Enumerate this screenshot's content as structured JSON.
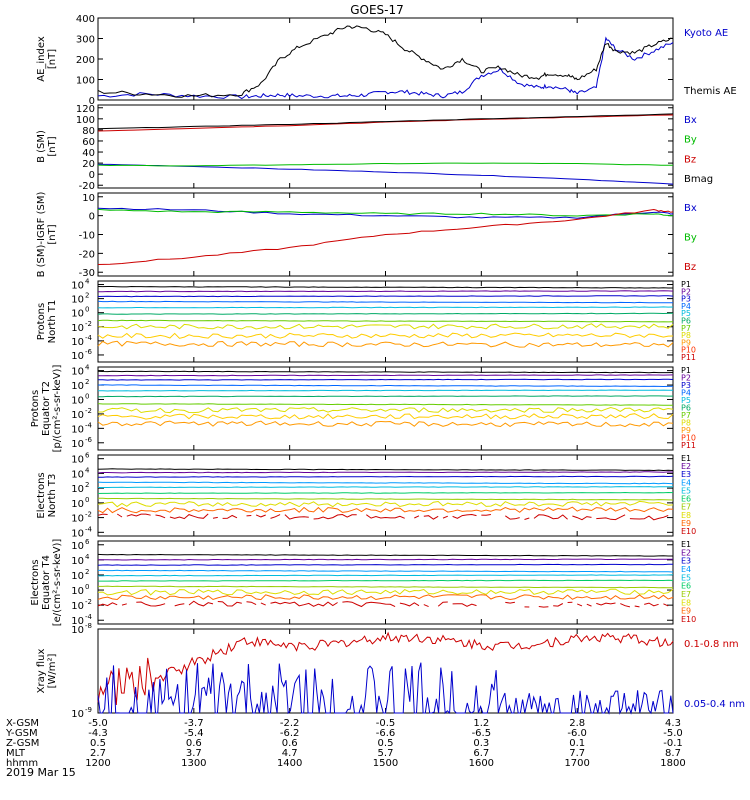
{
  "title": "GOES-17",
  "x_axis": {
    "ticks": [
      "1200",
      "1300",
      "1400",
      "1500",
      "1600",
      "1700",
      "1800"
    ],
    "date_label": "2019 Mar 15",
    "rows": [
      {
        "label": "X-GSM",
        "values": [
          "-5.0",
          "-3.7",
          "-2.2",
          "-0.5",
          "1.2",
          "2.8",
          "4.3"
        ]
      },
      {
        "label": "Y-GSM",
        "values": [
          "-4.3",
          "-5.4",
          "-6.2",
          "-6.6",
          "-6.5",
          "-6.0",
          "-5.0"
        ]
      },
      {
        "label": "Z-GSM",
        "values": [
          "0.5",
          "0.6",
          "0.6",
          "0.5",
          "0.3",
          "0.1",
          "-0.1"
        ]
      },
      {
        "label": "MLT",
        "values": [
          "2.7",
          "3.7",
          "4.7",
          "5.7",
          "6.7",
          "7.7",
          "8.7"
        ]
      },
      {
        "label": "hhmm",
        "values": [
          "1200",
          "1300",
          "1400",
          "1500",
          "1600",
          "1700",
          "1800"
        ]
      }
    ]
  },
  "chart_data": [
    {
      "type": "line",
      "ylabel": [
        "AE_index",
        "[nT]"
      ],
      "ylim": [
        0,
        400
      ],
      "yticks": [
        "0",
        "100",
        "200",
        "300",
        "400"
      ],
      "legend": [
        {
          "name": "Kyoto AE",
          "color": "#0000cc"
        },
        {
          "name": "Themis AE",
          "color": "#000000"
        }
      ],
      "x": [
        12.0,
        12.5,
        13.0,
        13.5,
        13.7,
        13.9,
        14.1,
        14.4,
        14.6,
        14.8,
        15.0,
        15.2,
        15.4,
        15.6,
        15.8,
        16.0,
        16.2,
        16.4,
        16.6,
        16.7,
        16.9,
        17.0,
        17.2,
        17.3,
        17.4,
        17.6,
        17.8,
        18.0
      ],
      "series": [
        {
          "name": "Kyoto AE",
          "color": "#0000cc",
          "values": [
            20,
            30,
            20,
            15,
            20,
            25,
            20,
            20,
            20,
            25,
            40,
            40,
            30,
            20,
            40,
            120,
            150,
            80,
            60,
            70,
            50,
            30,
            60,
            300,
            250,
            200,
            240,
            280
          ]
        },
        {
          "name": "Themis AE",
          "color": "#000000",
          "values": [
            40,
            30,
            20,
            30,
            80,
            200,
            260,
            320,
            360,
            350,
            320,
            250,
            200,
            150,
            200,
            140,
            160,
            120,
            110,
            130,
            120,
            100,
            150,
            280,
            240,
            230,
            270,
            300
          ]
        }
      ]
    },
    {
      "type": "line",
      "ylabel": [
        "B (SM)",
        "[nT]"
      ],
      "ylim": [
        -25,
        125
      ],
      "yticks": [
        "-20",
        "0",
        "20",
        "40",
        "60",
        "80",
        "100",
        "120"
      ],
      "legend": [
        {
          "name": "Bx",
          "color": "#0000cc"
        },
        {
          "name": "By",
          "color": "#00bb00"
        },
        {
          "name": "Bz",
          "color": "#cc0000"
        },
        {
          "name": "Bmag",
          "color": "#000000"
        }
      ],
      "x": [
        12,
        13,
        14,
        15,
        16,
        17,
        18
      ],
      "series": [
        {
          "name": "Bx",
          "color": "#0000cc",
          "values": [
            18,
            14,
            9,
            4,
            -2,
            -9,
            -18
          ]
        },
        {
          "name": "By",
          "color": "#00bb00",
          "values": [
            16,
            15,
            17,
            19,
            20,
            19,
            16
          ]
        },
        {
          "name": "Bz",
          "color": "#cc0000",
          "values": [
            78,
            83,
            88,
            94,
            99,
            103,
            107
          ]
        },
        {
          "name": "Bmag",
          "color": "#000000",
          "values": [
            82,
            86,
            90,
            95,
            100,
            104,
            109
          ]
        }
      ]
    },
    {
      "type": "line",
      "ylabel": [
        "B (SM)-IGRF (SM)",
        "[nT]"
      ],
      "ylim": [
        -32,
        12
      ],
      "yticks": [
        "-30",
        "-20",
        "-10",
        "0",
        "10"
      ],
      "legend": [
        {
          "name": "Bx",
          "color": "#0000cc"
        },
        {
          "name": "By",
          "color": "#00bb00"
        },
        {
          "name": "Bz",
          "color": "#cc0000"
        }
      ],
      "x": [
        12,
        13,
        14,
        15,
        16,
        17,
        17.8,
        18
      ],
      "series": [
        {
          "name": "Bx",
          "color": "#0000cc",
          "values": [
            4,
            3,
            1,
            0,
            -1,
            -1,
            2,
            1
          ]
        },
        {
          "name": "By",
          "color": "#00bb00",
          "values": [
            3,
            2,
            2,
            1,
            1,
            0,
            1,
            0
          ]
        },
        {
          "name": "Bz",
          "color": "#cc0000",
          "values": [
            -26,
            -22,
            -17,
            -10,
            -6,
            -2,
            3,
            2
          ]
        }
      ]
    },
    {
      "type": "line",
      "log": true,
      "ylabel": [
        "Protons",
        "North T1"
      ],
      "ylim_exp": [
        -7,
        4.5
      ],
      "ytick_exps": [
        4,
        2,
        0,
        -2,
        -4,
        -6
      ],
      "legend": [
        {
          "name": "P1",
          "color": "#000000"
        },
        {
          "name": "P2",
          "color": "#660099"
        },
        {
          "name": "P3",
          "color": "#0000cc"
        },
        {
          "name": "P4",
          "color": "#0066ff"
        },
        {
          "name": "P5",
          "color": "#00bbdd"
        },
        {
          "name": "P6",
          "color": "#00aa66"
        },
        {
          "name": "P7",
          "color": "#66cc00"
        },
        {
          "name": "P8",
          "color": "#dddd00"
        },
        {
          "name": "P9",
          "color": "#ff9900"
        },
        {
          "name": "P10",
          "color": "#ff3300"
        },
        {
          "name": "P11",
          "color": "#cc0000"
        }
      ],
      "series_levels": [
        3.7,
        3.0,
        2.3,
        1.6,
        0.7,
        -0.2,
        -1.1,
        -2.0,
        -3.3,
        -4.4
      ],
      "series_colors": [
        "#000000",
        "#660099",
        "#0000cc",
        "#0066ff",
        "#00bbdd",
        "#00aa66",
        "#66cc00",
        "#dddd00",
        "#ffcc00",
        "#ff9900"
      ]
    },
    {
      "type": "line",
      "log": true,
      "ylabel": [
        "Protons",
        "Equator T2",
        "[p/(cm²-s-sr-keV)]"
      ],
      "ylim_exp": [
        -7,
        4.5
      ],
      "ytick_exps": [
        4,
        2,
        0,
        -2,
        -4,
        -6
      ],
      "legend": [
        {
          "name": "P1",
          "color": "#000000"
        },
        {
          "name": "P2",
          "color": "#660099"
        },
        {
          "name": "P3",
          "color": "#0000cc"
        },
        {
          "name": "P4",
          "color": "#0066ff"
        },
        {
          "name": "P5",
          "color": "#00bbdd"
        },
        {
          "name": "P6",
          "color": "#00aa66"
        },
        {
          "name": "P7",
          "color": "#66cc00"
        },
        {
          "name": "P8",
          "color": "#dddd00"
        },
        {
          "name": "P9",
          "color": "#ff9900"
        },
        {
          "name": "P10",
          "color": "#ff3300"
        },
        {
          "name": "P11",
          "color": "#cc0000"
        }
      ],
      "series_levels": [
        3.9,
        3.3,
        2.7,
        2.0,
        1.2,
        0.4,
        -0.6,
        -1.5,
        -2.4,
        -3.3
      ],
      "series_colors": [
        "#000000",
        "#660099",
        "#0000cc",
        "#0066ff",
        "#00bbdd",
        "#00aa66",
        "#66cc00",
        "#dddd00",
        "#ffcc00",
        "#ff9900"
      ]
    },
    {
      "type": "line",
      "log": true,
      "ylabel": [
        "Electrons",
        "North T3"
      ],
      "ylim_exp": [
        -4.5,
        6.5
      ],
      "ytick_exps": [
        6,
        4,
        2,
        0,
        -2,
        -4
      ],
      "legend": [
        {
          "name": "E1",
          "color": "#000000"
        },
        {
          "name": "E2",
          "color": "#660099"
        },
        {
          "name": "E3",
          "color": "#0000cc"
        },
        {
          "name": "E4",
          "color": "#0099ff"
        },
        {
          "name": "E5",
          "color": "#00bbdd"
        },
        {
          "name": "E6",
          "color": "#00cc66"
        },
        {
          "name": "E7",
          "color": "#99cc00"
        },
        {
          "name": "E8",
          "color": "#dddd00"
        },
        {
          "name": "E9",
          "color": "#ff6600"
        },
        {
          "name": "E10",
          "color": "#cc0000"
        }
      ],
      "series_levels": [
        4.6,
        4.1,
        3.5,
        2.8,
        2.1,
        1.3,
        0.6,
        -0.2,
        -1.0,
        -1.8
      ],
      "series_colors": [
        "#000000",
        "#660099",
        "#0000cc",
        "#0099ff",
        "#00bbdd",
        "#00cc66",
        "#99cc00",
        "#dddd00",
        "#ff6600",
        "#cc0000"
      ]
    },
    {
      "type": "line",
      "log": true,
      "ylabel": [
        "Electrons",
        "Equator T4",
        "[e/(cm²-s-sr-keV)]"
      ],
      "ylim_exp": [
        -4.5,
        6.5
      ],
      "ytick_exps": [
        6,
        4,
        2,
        0,
        -2,
        -4
      ],
      "legend": [
        {
          "name": "E1",
          "color": "#000000"
        },
        {
          "name": "E2",
          "color": "#660099"
        },
        {
          "name": "E3",
          "color": "#0000cc"
        },
        {
          "name": "E4",
          "color": "#0099ff"
        },
        {
          "name": "E5",
          "color": "#00bbdd"
        },
        {
          "name": "E6",
          "color": "#00cc66"
        },
        {
          "name": "E7",
          "color": "#99cc00"
        },
        {
          "name": "E8",
          "color": "#dddd00"
        },
        {
          "name": "E9",
          "color": "#ff6600"
        },
        {
          "name": "E10",
          "color": "#cc0000"
        }
      ],
      "series_levels": [
        4.7,
        4.0,
        3.3,
        2.6,
        1.9,
        1.2,
        0.5,
        -0.3,
        -1.0,
        -1.8
      ],
      "series_colors": [
        "#000000",
        "#660099",
        "#0000cc",
        "#0099ff",
        "#00bbdd",
        "#00cc66",
        "#99cc00",
        "#dddd00",
        "#ff6600",
        "#cc0000"
      ]
    },
    {
      "type": "line",
      "log": true,
      "ylabel": [
        "Xray flux",
        "[W/m²]"
      ],
      "ylim_exp": [
        -9,
        -8
      ],
      "ytick_exps": [
        -8,
        -9
      ],
      "legend": [
        {
          "name": "0.1-0.8 nm",
          "color": "#cc0000"
        },
        {
          "name": "0.05-0.4 nm",
          "color": "#0000cc"
        }
      ],
      "series_colors": [
        "#cc0000",
        "#0000cc"
      ]
    }
  ]
}
